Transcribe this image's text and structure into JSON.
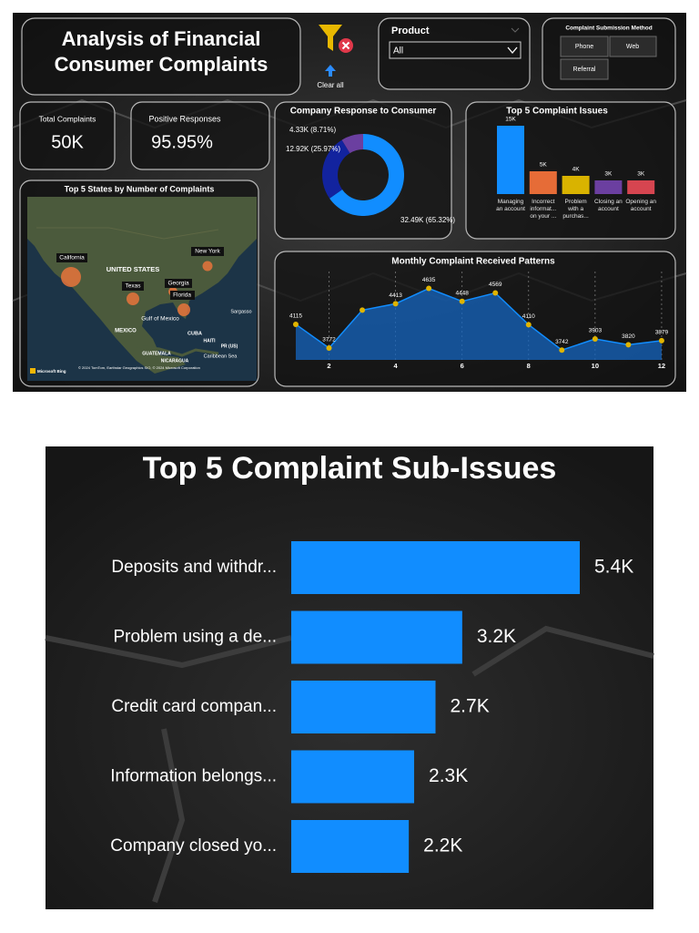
{
  "header": {
    "title_lines": [
      "Analysis of Financial",
      "Consumer Complaints"
    ],
    "clear_all": "Clear all"
  },
  "filters": {
    "product": {
      "label": "Product",
      "value": "All"
    },
    "submission_method": {
      "label": "Complaint Submission Method",
      "options": [
        "Phone",
        "Web",
        "Referral"
      ]
    }
  },
  "kpis": [
    {
      "label": "Total Complaints",
      "value": "50K"
    },
    {
      "label": "Positive Responses",
      "value": "95.95%"
    }
  ],
  "map": {
    "title": "Top 5 States by Number of Complaints",
    "markers": [
      "California",
      "Texas",
      "New York",
      "Georgia",
      "Florida"
    ],
    "places": [
      "UNITED STATES",
      "MEXICO",
      "Gulf of Mexico",
      "CUBA",
      "Sargasso",
      "GUATEMALA",
      "NICARAGUA",
      "Caribbean Sea",
      "HAITI",
      "PR (US)"
    ],
    "logo": "Microsoft Bing",
    "attribution": "© 2024 TomTom, Earthstar Geographics SIO, © 2024 Microsoft Corporation"
  },
  "chart_data": [
    {
      "type": "donut",
      "title": "Company Response to Consumer",
      "values": [
        65.32,
        25.97,
        8.71
      ],
      "value_labels": [
        "32.49K (65.32%)",
        "12.92K (25.97%)",
        "4.33K (8.71%)"
      ],
      "colors": [
        "#118dff",
        "#12239e",
        "#6b3fa0"
      ]
    },
    {
      "type": "bar",
      "title": "Top 5 Complaint Issues",
      "categories": [
        "Managing an account",
        "Incorrect informat... on your ...",
        "Problem with a purchas...",
        "Closing an account",
        "Opening an account"
      ],
      "values": [
        15000,
        5000,
        4000,
        3000,
        3000
      ],
      "value_labels": [
        "15K",
        "5K",
        "4K",
        "3K",
        "3K"
      ],
      "colors": [
        "#118dff",
        "#e66c37",
        "#d9b300",
        "#6b3fa0",
        "#d64550"
      ]
    },
    {
      "type": "line",
      "title": "Monthly Complaint Received Patterns",
      "x": [
        1,
        2,
        3,
        4,
        5,
        6,
        7,
        8,
        9,
        10,
        11,
        12
      ],
      "values": [
        4115,
        3772,
        4320,
        4413,
        4635,
        4448,
        4569,
        4110,
        3742,
        3903,
        3820,
        3879
      ],
      "value_labels": [
        "4115",
        "3772",
        null,
        "4413",
        "4635",
        "4448",
        "4569",
        "4110",
        "3742",
        "3903",
        "3820",
        "3879"
      ],
      "xlim": [
        0.5,
        12.5
      ],
      "xticks": [
        2,
        4,
        6,
        8,
        10,
        12
      ],
      "ylim": [
        3600,
        4800
      ],
      "color": "#118dff",
      "marker_color": "#e0b400",
      "area": true,
      "grid": true
    },
    {
      "type": "hbar",
      "title": "Top 5 Complaint Sub-Issues",
      "categories": [
        "Deposits and withdr...",
        "Problem using a de...",
        "Credit card compan...",
        "Information belongs...",
        "Company closed yo..."
      ],
      "values": [
        5400,
        3200,
        2700,
        2300,
        2200
      ],
      "value_labels": [
        "5.4K",
        "3.2K",
        "2.7K",
        "2.3K",
        "2.2K"
      ],
      "color": "#118dff"
    }
  ]
}
